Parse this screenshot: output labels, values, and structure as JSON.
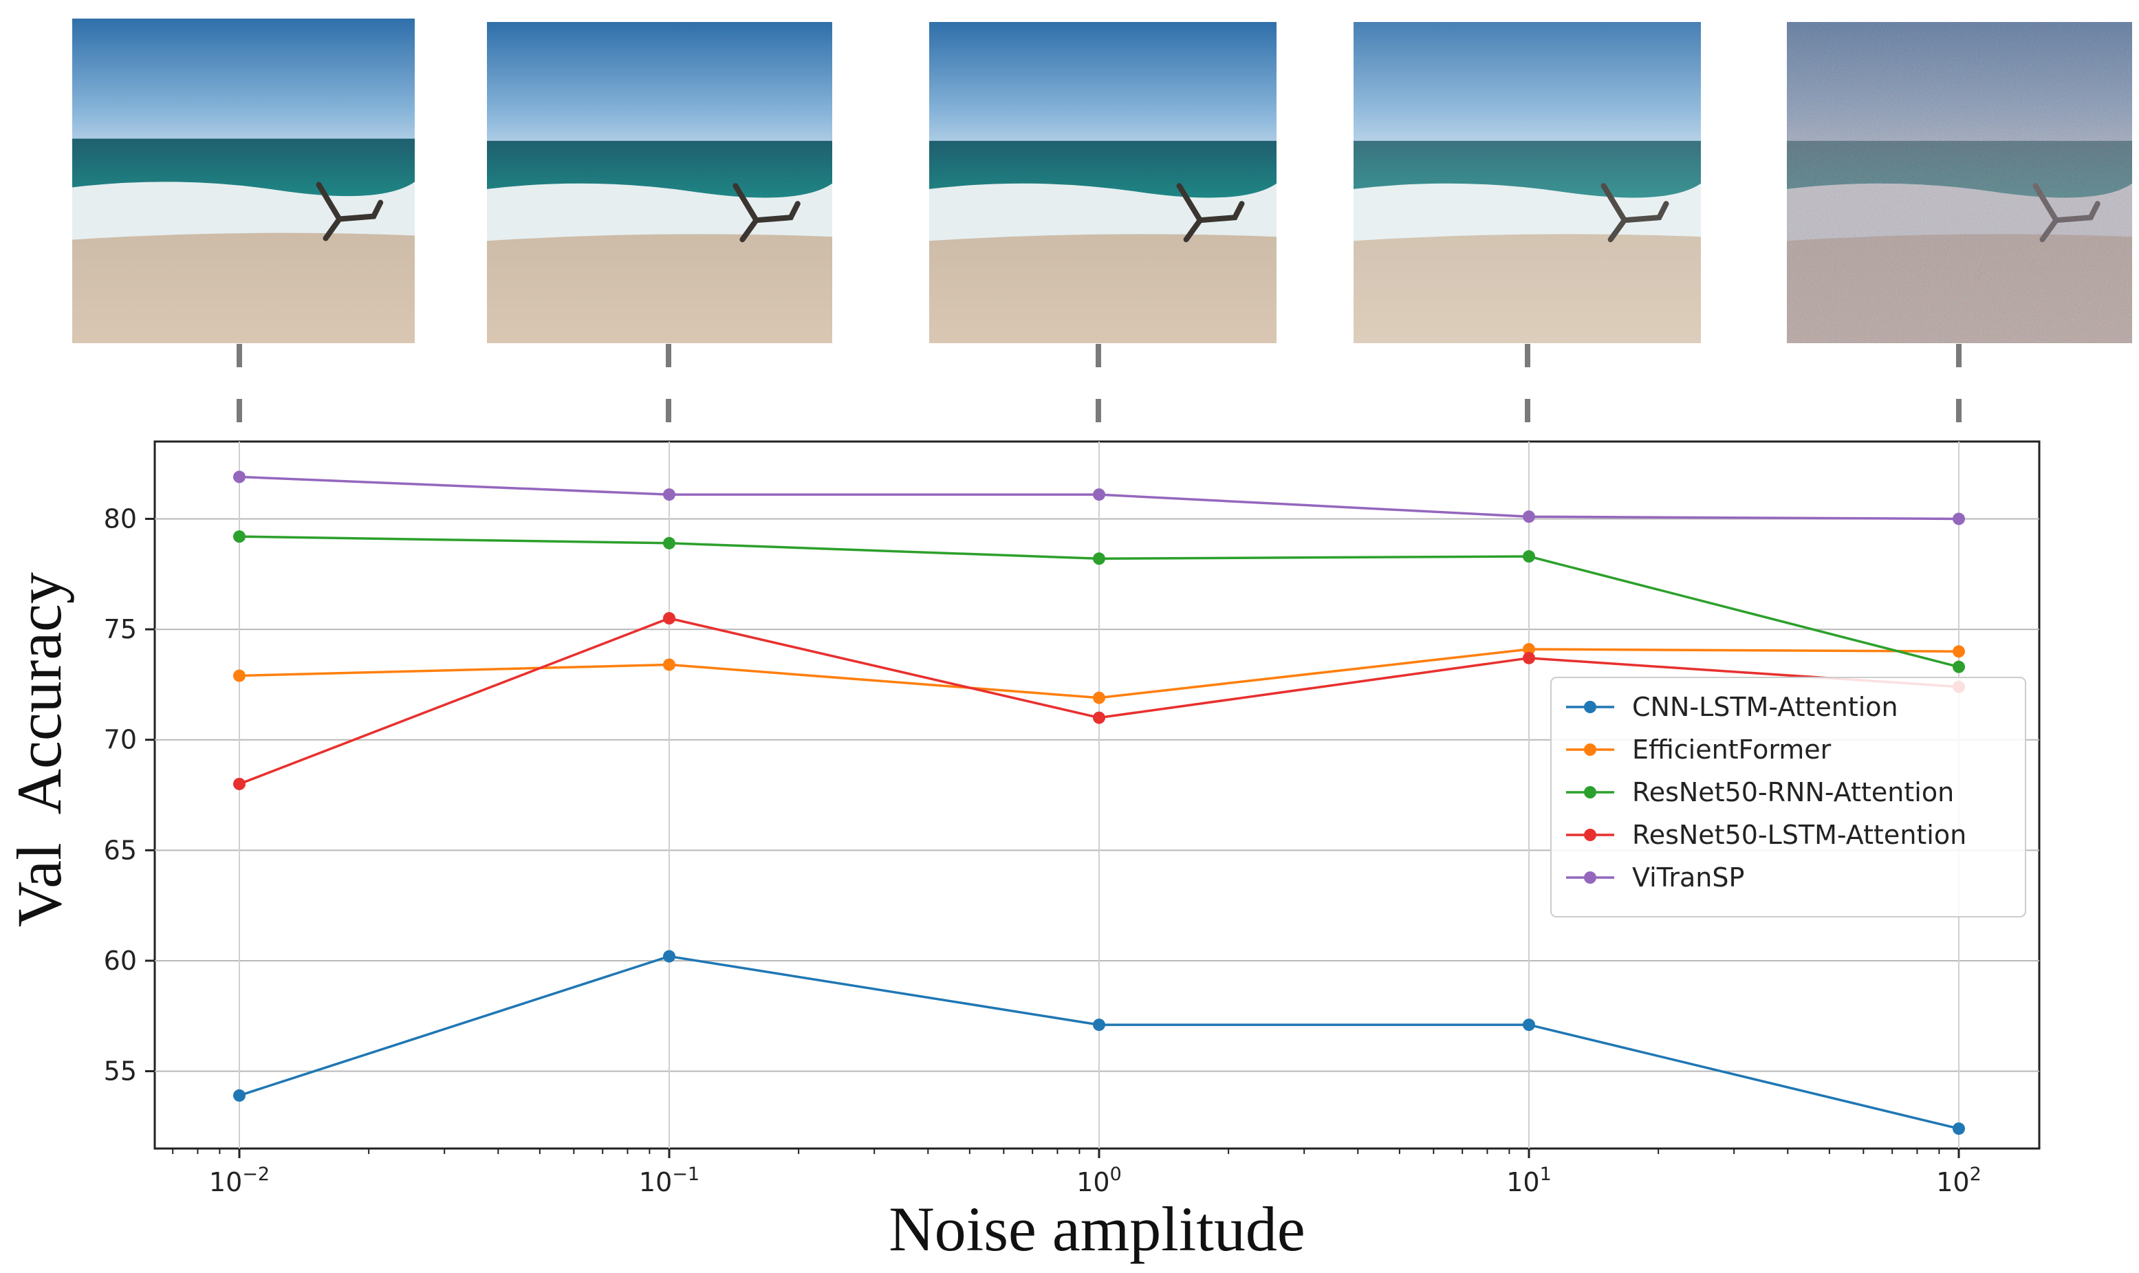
{
  "chart_data": {
    "type": "line",
    "xscale": "log",
    "x": [
      0.01,
      0.1,
      1,
      10,
      100
    ],
    "xtick_labels": [
      {
        "base": "10",
        "exp": "−2"
      },
      {
        "base": "10",
        "exp": "−1"
      },
      {
        "base": "10",
        "exp": "0"
      },
      {
        "base": "10",
        "exp": "1"
      },
      {
        "base": "10",
        "exp": "2"
      }
    ],
    "xlabel": "Noise amplitude",
    "ylabel": "Val  Accuracy",
    "ylim": [
      51.5,
      83.5
    ],
    "yticks": [
      55,
      60,
      65,
      70,
      75,
      80
    ],
    "grid": true,
    "legend_position": "center-right",
    "series": [
      {
        "name": "CNN-LSTM-Attention",
        "color": "#1f77b4",
        "values": [
          53.9,
          60.2,
          57.1,
          57.1,
          52.4
        ]
      },
      {
        "name": "EfficientFormer",
        "color": "#ff7f0e",
        "values": [
          72.9,
          73.4,
          71.9,
          74.1,
          74.0
        ]
      },
      {
        "name": "ResNet50-RNN-Attention",
        "color": "#2ca02c",
        "values": [
          79.2,
          78.9,
          78.2,
          78.3,
          73.3
        ]
      },
      {
        "name": "ResNet50-LSTM-Attention",
        "color": "#e8302e",
        "values": [
          68.0,
          75.5,
          71.0,
          73.7,
          72.4
        ]
      },
      {
        "name": "ViTranSP",
        "color": "#9467bd",
        "values": [
          81.9,
          81.1,
          81.1,
          80.1,
          80.0
        ]
      }
    ]
  },
  "images": [
    {
      "noise": "1e-2",
      "label": "beach-image-noise-0.01"
    },
    {
      "noise": "1e-1",
      "label": "beach-image-noise-0.1"
    },
    {
      "noise": "1e0",
      "label": "beach-image-noise-1"
    },
    {
      "noise": "1e1",
      "label": "beach-image-noise-10"
    },
    {
      "noise": "1e2",
      "label": "beach-image-noise-100"
    }
  ]
}
